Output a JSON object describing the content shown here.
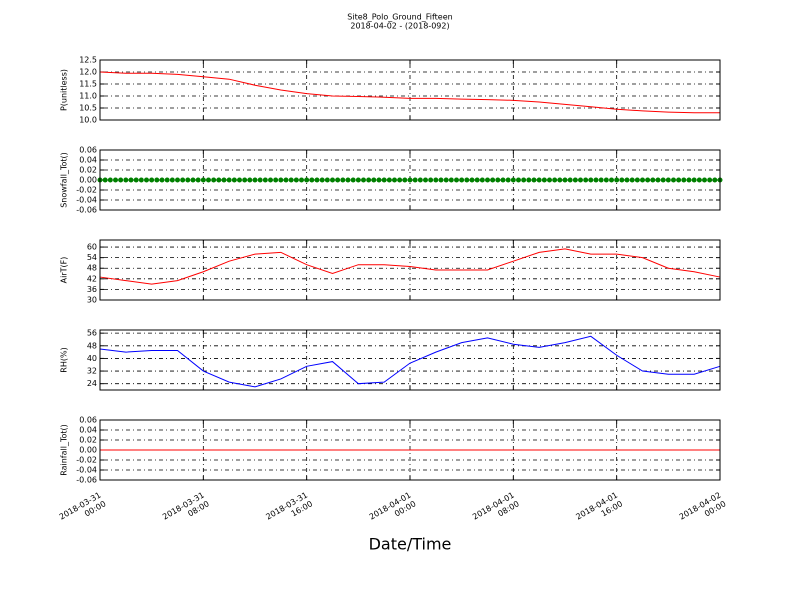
{
  "chart_data": [
    {
      "type": "line",
      "title": "Site8_Polo_Ground_Fifteen",
      "subtitle": "2018-04-02 - (2018-092)",
      "ylabel": "P(unitless)",
      "x": [
        "2018-03-31 00:00",
        "2018-03-31 02:00",
        "2018-03-31 04:00",
        "2018-03-31 06:00",
        "2018-03-31 08:00",
        "2018-03-31 10:00",
        "2018-03-31 12:00",
        "2018-03-31 14:00",
        "2018-03-31 16:00",
        "2018-03-31 18:00",
        "2018-03-31 20:00",
        "2018-03-31 22:00",
        "2018-04-01 00:00",
        "2018-04-01 02:00",
        "2018-04-01 04:00",
        "2018-04-01 06:00",
        "2018-04-01 08:00",
        "2018-04-01 10:00",
        "2018-04-01 12:00",
        "2018-04-01 14:00",
        "2018-04-01 16:00",
        "2018-04-01 18:00",
        "2018-04-01 20:00",
        "2018-04-01 22:00",
        "2018-04-02 00:00"
      ],
      "series": [
        {
          "color": "#ff0000",
          "values": [
            12.0,
            11.95,
            11.95,
            11.9,
            11.8,
            11.7,
            11.45,
            11.25,
            11.1,
            11.0,
            10.98,
            10.95,
            10.9,
            10.9,
            10.87,
            10.85,
            10.82,
            10.75,
            10.65,
            10.55,
            10.45,
            10.38,
            10.33,
            10.3,
            10.3
          ]
        }
      ],
      "xlim": [
        "2018-03-31 00:00",
        "2018-04-02 00:00"
      ],
      "xticks": [
        "2018-03-31 00:00",
        "2018-03-31 08:00",
        "2018-03-31 16:00",
        "2018-04-01 00:00",
        "2018-04-01 08:00",
        "2018-04-01 16:00",
        "2018-04-02 00:00"
      ],
      "ylim": [
        10,
        12.5
      ],
      "yticks": [
        {
          "value": 10,
          "label": "10.0"
        },
        10.5,
        {
          "value": 11,
          "label": "11.0"
        },
        11.5,
        {
          "value": 12,
          "label": "12.0"
        },
        12.5
      ],
      "grid": true
    },
    {
      "type": "scatter",
      "ylabel": "Snowfall_Tot()",
      "x": [
        "2018-03-31 00:00",
        "2018-03-31 02:00",
        "2018-03-31 04:00",
        "2018-03-31 06:00",
        "2018-03-31 08:00",
        "2018-03-31 10:00",
        "2018-03-31 12:00",
        "2018-03-31 14:00",
        "2018-03-31 16:00",
        "2018-03-31 18:00",
        "2018-03-31 20:00",
        "2018-03-31 22:00",
        "2018-04-01 00:00",
        "2018-04-01 02:00",
        "2018-04-01 04:00",
        "2018-04-01 06:00",
        "2018-04-01 08:00",
        "2018-04-01 10:00",
        "2018-04-01 12:00",
        "2018-04-01 14:00",
        "2018-04-01 16:00",
        "2018-04-01 18:00",
        "2018-04-01 20:00",
        "2018-04-01 22:00",
        "2018-04-02 00:00"
      ],
      "series": [
        {
          "color": "#008000",
          "values": [
            0,
            0,
            0,
            0,
            0,
            0,
            0,
            0,
            0,
            0,
            0,
            0,
            0,
            0,
            0,
            0,
            0,
            0,
            0,
            0,
            0,
            0,
            0,
            0,
            0
          ]
        }
      ],
      "xlim": [
        "2018-03-31 00:00",
        "2018-04-02 00:00"
      ],
      "xticks": [
        "2018-03-31 00:00",
        "2018-03-31 08:00",
        "2018-03-31 16:00",
        "2018-04-01 00:00",
        "2018-04-01 08:00",
        "2018-04-01 16:00",
        "2018-04-02 00:00"
      ],
      "ylim": [
        -0.06,
        0.06
      ],
      "yticks": [
        -0.06,
        -0.04,
        -0.02,
        {
          "value": 0,
          "label": "0.00"
        },
        0.02,
        0.04,
        0.06
      ],
      "grid": true
    },
    {
      "type": "line",
      "ylabel": "AirT(F)",
      "x": [
        "2018-03-31 00:00",
        "2018-03-31 02:00",
        "2018-03-31 04:00",
        "2018-03-31 06:00",
        "2018-03-31 08:00",
        "2018-03-31 10:00",
        "2018-03-31 12:00",
        "2018-03-31 14:00",
        "2018-03-31 16:00",
        "2018-03-31 18:00",
        "2018-03-31 20:00",
        "2018-03-31 22:00",
        "2018-04-01 00:00",
        "2018-04-01 02:00",
        "2018-04-01 04:00",
        "2018-04-01 06:00",
        "2018-04-01 08:00",
        "2018-04-01 10:00",
        "2018-04-01 12:00",
        "2018-04-01 14:00",
        "2018-04-01 16:00",
        "2018-04-01 18:00",
        "2018-04-01 20:00",
        "2018-04-01 22:00",
        "2018-04-02 00:00"
      ],
      "series": [
        {
          "color": "#ff0000",
          "values": [
            43,
            41,
            39,
            41,
            46,
            52,
            56,
            57,
            50,
            45,
            50,
            50,
            49,
            47,
            47,
            47,
            52,
            57,
            59,
            56,
            56,
            54,
            48,
            46,
            43
          ]
        }
      ],
      "xlim": [
        "2018-03-31 00:00",
        "2018-04-02 00:00"
      ],
      "xticks": [
        "2018-03-31 00:00",
        "2018-03-31 08:00",
        "2018-03-31 16:00",
        "2018-04-01 00:00",
        "2018-04-01 08:00",
        "2018-04-01 16:00",
        "2018-04-02 00:00"
      ],
      "ylim": [
        30,
        64
      ],
      "yticks": [
        30,
        36,
        42,
        48,
        54,
        60
      ],
      "grid": true
    },
    {
      "type": "line",
      "ylabel": "RH(%)",
      "x": [
        "2018-03-31 00:00",
        "2018-03-31 02:00",
        "2018-03-31 04:00",
        "2018-03-31 06:00",
        "2018-03-31 08:00",
        "2018-03-31 10:00",
        "2018-03-31 12:00",
        "2018-03-31 14:00",
        "2018-03-31 16:00",
        "2018-03-31 18:00",
        "2018-03-31 20:00",
        "2018-03-31 22:00",
        "2018-04-01 00:00",
        "2018-04-01 02:00",
        "2018-04-01 04:00",
        "2018-04-01 06:00",
        "2018-04-01 08:00",
        "2018-04-01 10:00",
        "2018-04-01 12:00",
        "2018-04-01 14:00",
        "2018-04-01 16:00",
        "2018-04-01 18:00",
        "2018-04-01 20:00",
        "2018-04-01 22:00",
        "2018-04-02 00:00"
      ],
      "series": [
        {
          "color": "#0000ff",
          "values": [
            46,
            44,
            45,
            45,
            32,
            25,
            22,
            27,
            35,
            38,
            24,
            25,
            37,
            44,
            50,
            53,
            49,
            47,
            50,
            54,
            42,
            32,
            30,
            30,
            35
          ]
        }
      ],
      "xlim": [
        "2018-03-31 00:00",
        "2018-04-02 00:00"
      ],
      "xticks": [
        "2018-03-31 00:00",
        "2018-03-31 08:00",
        "2018-03-31 16:00",
        "2018-04-01 00:00",
        "2018-04-01 08:00",
        "2018-04-01 16:00",
        "2018-04-02 00:00"
      ],
      "ylim": [
        20,
        58
      ],
      "yticks": [
        24,
        32,
        40,
        48,
        56
      ],
      "grid": true
    },
    {
      "type": "line",
      "ylabel": "Rainfall_Tot()",
      "xlabel": "Date/Time",
      "x": [
        "2018-03-31 00:00",
        "2018-03-31 02:00",
        "2018-03-31 04:00",
        "2018-03-31 06:00",
        "2018-03-31 08:00",
        "2018-03-31 10:00",
        "2018-03-31 12:00",
        "2018-03-31 14:00",
        "2018-03-31 16:00",
        "2018-03-31 18:00",
        "2018-03-31 20:00",
        "2018-03-31 22:00",
        "2018-04-01 00:00",
        "2018-04-01 02:00",
        "2018-04-01 04:00",
        "2018-04-01 06:00",
        "2018-04-01 08:00",
        "2018-04-01 10:00",
        "2018-04-01 12:00",
        "2018-04-01 14:00",
        "2018-04-01 16:00",
        "2018-04-01 18:00",
        "2018-04-01 20:00",
        "2018-04-01 22:00",
        "2018-04-02 00:00"
      ],
      "series": [
        {
          "color": "#ff0000",
          "values": [
            0,
            0,
            0,
            0,
            0,
            0,
            0,
            0,
            0,
            0,
            0,
            0,
            0,
            0,
            0,
            0,
            0,
            0,
            0,
            0,
            0,
            0,
            0,
            0,
            0
          ]
        }
      ],
      "xlim": [
        "2018-03-31 00:00",
        "2018-04-02 00:00"
      ],
      "xticks": [
        "2018-03-31 00:00",
        "2018-03-31 08:00",
        "2018-03-31 16:00",
        "2018-04-01 00:00",
        "2018-04-01 08:00",
        "2018-04-01 16:00",
        "2018-04-02 00:00"
      ],
      "ylim": [
        -0.06,
        0.06
      ],
      "yticks": [
        -0.06,
        -0.04,
        -0.02,
        {
          "value": 0,
          "label": "0.00"
        },
        0.02,
        0.04,
        0.06
      ],
      "grid": true
    }
  ]
}
